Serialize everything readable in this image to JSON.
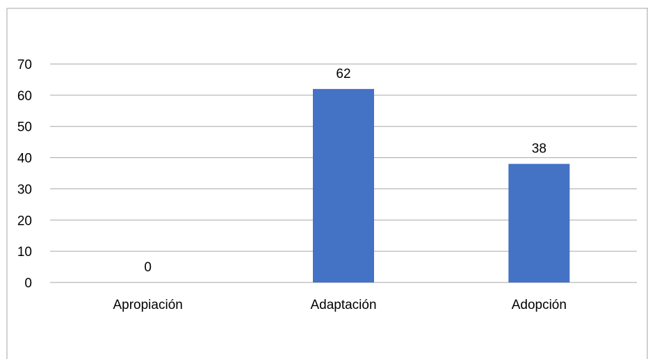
{
  "chart_data": {
    "type": "bar",
    "title": "",
    "xlabel": "",
    "ylabel": "",
    "categories": [
      "Apropiación",
      "Adaptación",
      "Adopción"
    ],
    "values": [
      0,
      62,
      38
    ],
    "data_labels": [
      "0",
      "62",
      "38"
    ],
    "ylim": [
      0,
      70
    ],
    "yticks": [
      "0",
      "10",
      "20",
      "30",
      "40",
      "50",
      "60",
      "70"
    ],
    "grid": true,
    "legend": "none",
    "bar_color": "#4472C4",
    "grid_color": "#A6A6A6",
    "frame_color": "#A6A6A6"
  }
}
